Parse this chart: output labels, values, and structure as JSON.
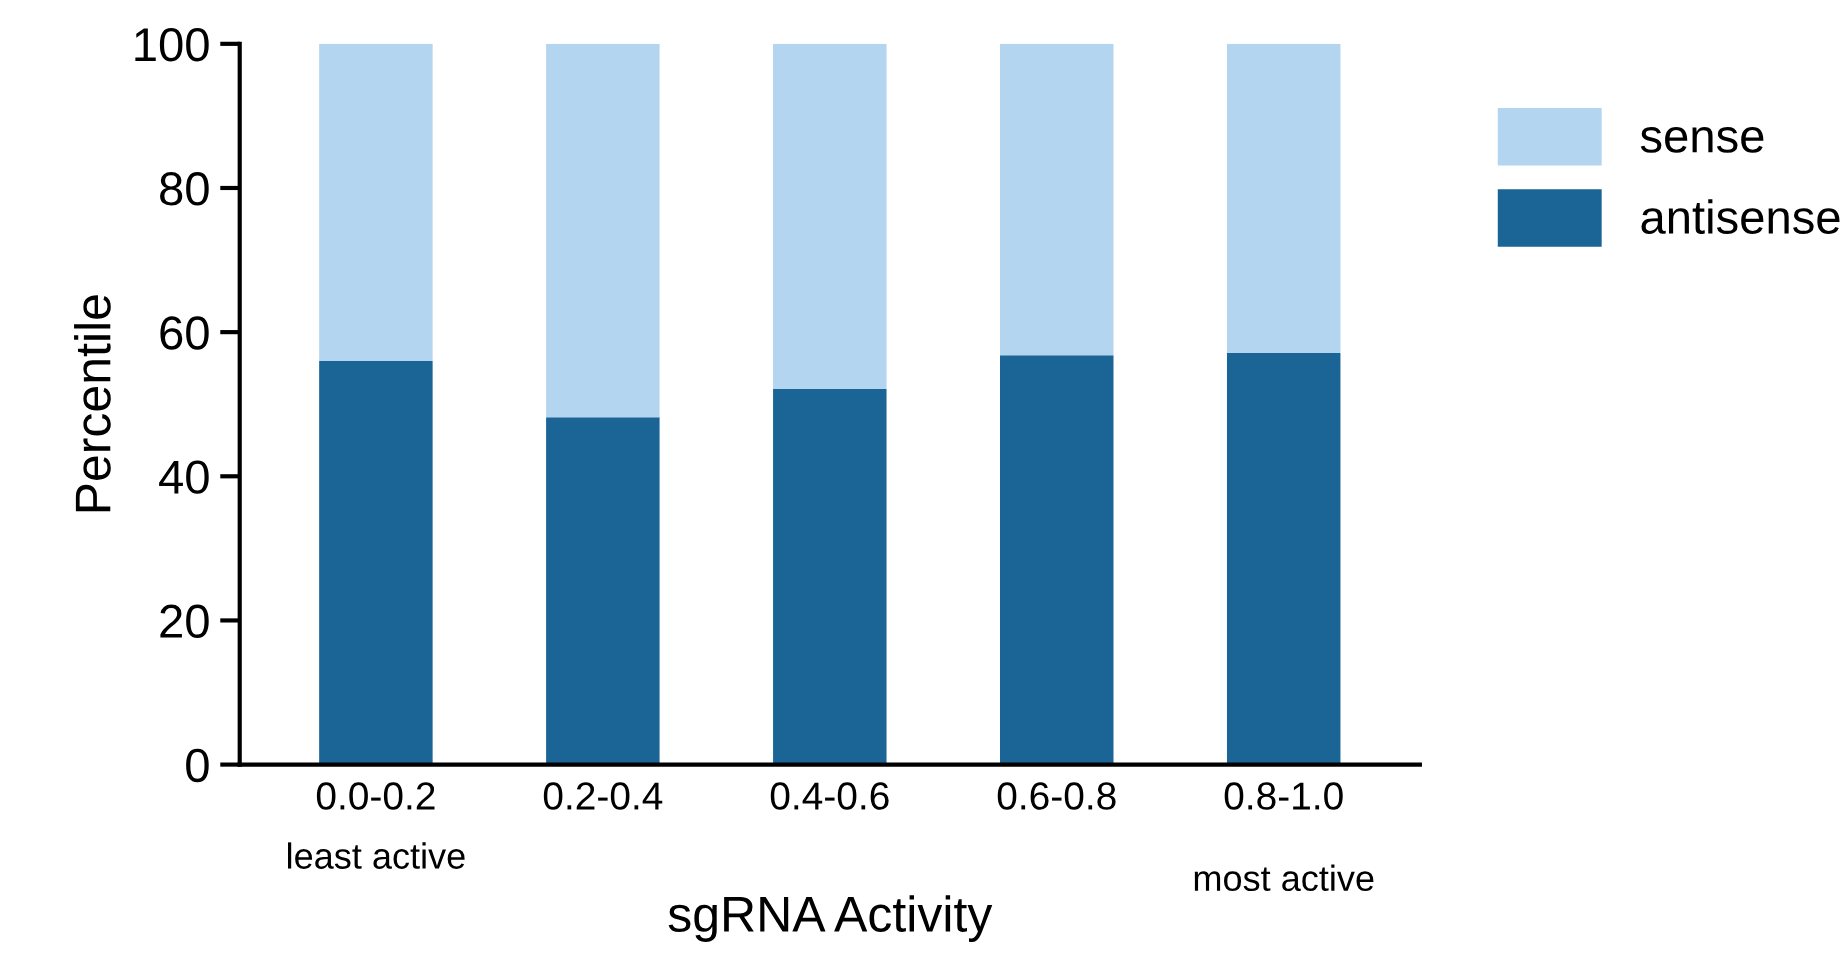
{
  "chart_data": {
    "type": "bar",
    "stacked": true,
    "xlabel": "sgRNA Activity",
    "ylabel": "Percentile",
    "categories": [
      "0.0-0.2",
      "0.2-0.4",
      "0.4-0.6",
      "0.6-0.8",
      "0.8-1.0"
    ],
    "series": [
      {
        "name": "antisense",
        "color": "#1a6496",
        "values": [
          56,
          48.2,
          52.1,
          56.8,
          57.1
        ]
      },
      {
        "name": "sense",
        "color": "#b3d5f0",
        "values": [
          44,
          51.8,
          47.9,
          43.2,
          42.9
        ]
      }
    ],
    "ylim": [
      0,
      100
    ],
    "yticks": [
      0,
      20,
      40,
      60,
      80,
      100
    ],
    "grid": false,
    "legend": "top right",
    "annotations": [
      "least active",
      "most active"
    ]
  }
}
